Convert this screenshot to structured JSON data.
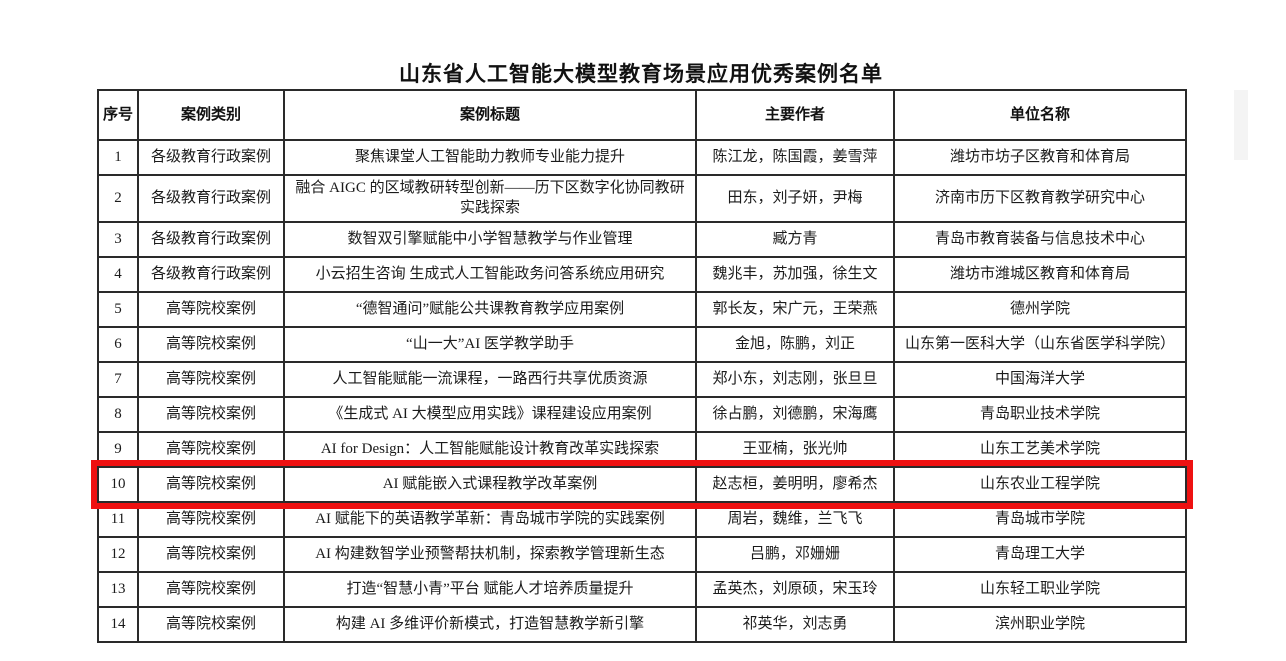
{
  "page": {
    "title": "山东省人工智能大模型教育场景应用优秀案例名单"
  },
  "table": {
    "headers": [
      "序号",
      "案例类别",
      "案例标题",
      "主要作者",
      "单位名称"
    ],
    "rows": [
      {
        "no": "1",
        "category": "各级教育行政案例",
        "title": "聚焦课堂人工智能助力教师专业能力提升",
        "authors": "陈江龙，陈国霞，姜雪萍",
        "unit": "潍坊市坊子区教育和体育局"
      },
      {
        "no": "2",
        "category": "各级教育行政案例",
        "title": "融合 AIGC 的区域教研转型创新——历下区数字化协同教研实践探索",
        "authors": "田东，刘子妍，尹梅",
        "unit": "济南市历下区教育教学研究中心"
      },
      {
        "no": "3",
        "category": "各级教育行政案例",
        "title": "数智双引擎赋能中小学智慧教学与作业管理",
        "authors": "臧方青",
        "unit": "青岛市教育装备与信息技术中心"
      },
      {
        "no": "4",
        "category": "各级教育行政案例",
        "title": "小云招生咨询 生成式人工智能政务问答系统应用研究",
        "authors": "魏兆丰，苏加强，徐生文",
        "unit": "潍坊市潍城区教育和体育局"
      },
      {
        "no": "5",
        "category": "高等院校案例",
        "title": "“德智通问”赋能公共课教育教学应用案例",
        "authors": "郭长友，宋广元，王荣燕",
        "unit": "德州学院"
      },
      {
        "no": "6",
        "category": "高等院校案例",
        "title": "“山一大”AI 医学教学助手",
        "authors": "金旭，陈鹏，刘正",
        "unit": "山东第一医科大学（山东省医学科学院）"
      },
      {
        "no": "7",
        "category": "高等院校案例",
        "title": "人工智能赋能一流课程，一路西行共享优质资源",
        "authors": "郑小东，刘志刚，张旦旦",
        "unit": "中国海洋大学"
      },
      {
        "no": "8",
        "category": "高等院校案例",
        "title": "《生成式 AI 大模型应用实践》课程建设应用案例",
        "authors": "徐占鹏，刘德鹏，宋海鹰",
        "unit": "青岛职业技术学院"
      },
      {
        "no": "9",
        "category": "高等院校案例",
        "title": "AI for Design：人工智能赋能设计教育改革实践探索",
        "authors": "王亚楠，张光帅",
        "unit": "山东工艺美术学院"
      },
      {
        "no": "10",
        "category": "高等院校案例",
        "title": "AI 赋能嵌入式课程教学改革案例",
        "authors": "赵志桓，姜明明，廖希杰",
        "unit": "山东农业工程学院"
      },
      {
        "no": "11",
        "category": "高等院校案例",
        "title": "AI 赋能下的英语教学革新：青岛城市学院的实践案例",
        "authors": "周岩，魏维，兰飞飞",
        "unit": "青岛城市学院"
      },
      {
        "no": "12",
        "category": "高等院校案例",
        "title": "AI 构建数智学业预警帮扶机制，探索教学管理新生态",
        "authors": "吕鹏，邓姗姗",
        "unit": "青岛理工大学"
      },
      {
        "no": "13",
        "category": "高等院校案例",
        "title": "打造“智慧小青”平台 赋能人才培养质量提升",
        "authors": "孟英杰，刘原硕，宋玉玲",
        "unit": "山东轻工职业学院"
      },
      {
        "no": "14",
        "category": "高等院校案例",
        "title": "构建 AI 多维评价新模式，打造智慧教学新引擎",
        "authors": "祁英华，刘志勇",
        "unit": "滨州职业学院"
      }
    ],
    "highlighted_row_no": "10",
    "highlight_color": "#ee1111"
  }
}
